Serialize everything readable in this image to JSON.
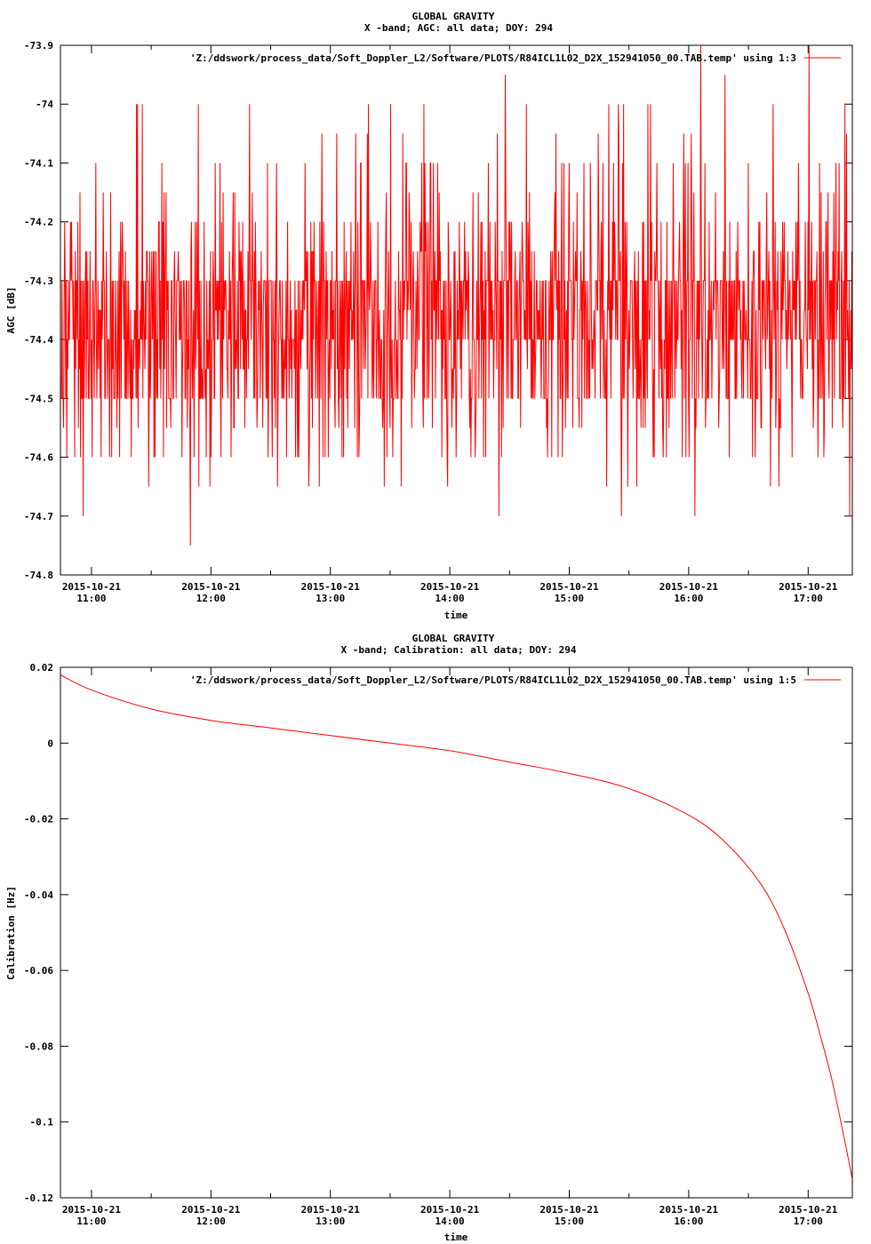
{
  "chart_data": [
    {
      "type": "line",
      "title": "GLOBAL GRAVITY",
      "subtitle": "X -band; AGC: all data; DOY: 294",
      "xlabel": "time",
      "ylabel": "AGC [dB]",
      "ylim": [
        -74.8,
        -73.9
      ],
      "yticks": [
        "-73.9",
        "-74",
        "-74.1",
        "-74.2",
        "-74.3",
        "-74.4",
        "-74.5",
        "-74.6",
        "-74.7",
        "-74.8"
      ],
      "ytick_values": [
        -73.9,
        -74.0,
        -74.1,
        -74.2,
        -74.3,
        -74.4,
        -74.5,
        -74.6,
        -74.7,
        -74.8
      ],
      "xlim_hours": [
        10.74,
        17.37
      ],
      "xtick_hours": [
        11,
        12,
        13,
        14,
        15,
        16,
        17
      ],
      "xtick_dates": [
        "2015-10-21",
        "2015-10-21",
        "2015-10-21",
        "2015-10-21",
        "2015-10-21",
        "2015-10-21",
        "2015-10-21"
      ],
      "xtick_times": [
        "11:00",
        "12:00",
        "13:00",
        "14:00",
        "15:00",
        "16:00",
        "17:00"
      ],
      "grid": false,
      "legend_position": "top-right",
      "color": "#ff0000",
      "series": [
        {
          "name": "'Z:/ddswork/process_data/Soft_Doppler_L2/Software/PLOTS/R84ICL1L02_D2X_152941050_00.TAB.temp' using 1:3",
          "data_kind": "noisy_agc",
          "mean": -74.38,
          "value_levels": [
            -73.9,
            -74.0,
            -74.1,
            -74.2,
            -74.3,
            -74.4,
            -74.5,
            -74.6,
            -74.7,
            -74.8
          ]
        }
      ]
    },
    {
      "type": "line",
      "title": "GLOBAL GRAVITY",
      "subtitle": "X -band; Calibration: all data; DOY: 294",
      "xlabel": "time",
      "ylabel": "Calibration [Hz]",
      "ylim": [
        -0.12,
        0.02
      ],
      "yticks": [
        "0.02",
        "0",
        "-0.02",
        "-0.04",
        "-0.06",
        "-0.08",
        "-0.1",
        "-0.12"
      ],
      "ytick_values": [
        0.02,
        0.0,
        -0.02,
        -0.04,
        -0.06,
        -0.08,
        -0.1,
        -0.12
      ],
      "xlim_hours": [
        10.74,
        17.37
      ],
      "xtick_hours": [
        11,
        12,
        13,
        14,
        15,
        16,
        17
      ],
      "xtick_dates": [
        "2015-10-21",
        "2015-10-21",
        "2015-10-21",
        "2015-10-21",
        "2015-10-21",
        "2015-10-21",
        "2015-10-21"
      ],
      "xtick_times": [
        "11:00",
        "12:00",
        "13:00",
        "14:00",
        "15:00",
        "16:00",
        "17:00"
      ],
      "grid": false,
      "legend_position": "top-right",
      "color": "#ff0000",
      "series": [
        {
          "name": "'Z:/ddswork/process_data/Soft_Doppler_L2/Software/PLOTS/R84ICL1L02_D2X_152941050_00.TAB.temp' using 1:5",
          "x_hours": [
            10.74,
            11.0,
            11.5,
            12.0,
            12.5,
            13.0,
            13.5,
            14.0,
            14.5,
            15.0,
            15.5,
            16.0,
            16.3,
            16.6,
            16.8,
            17.0,
            17.1,
            17.2,
            17.3,
            17.37
          ],
          "values": [
            0.018,
            0.014,
            0.009,
            0.006,
            0.004,
            0.002,
            0.0,
            -0.002,
            -0.005,
            -0.008,
            -0.012,
            -0.019,
            -0.026,
            -0.037,
            -0.049,
            -0.066,
            -0.077,
            -0.089,
            -0.104,
            -0.115
          ]
        }
      ]
    }
  ]
}
